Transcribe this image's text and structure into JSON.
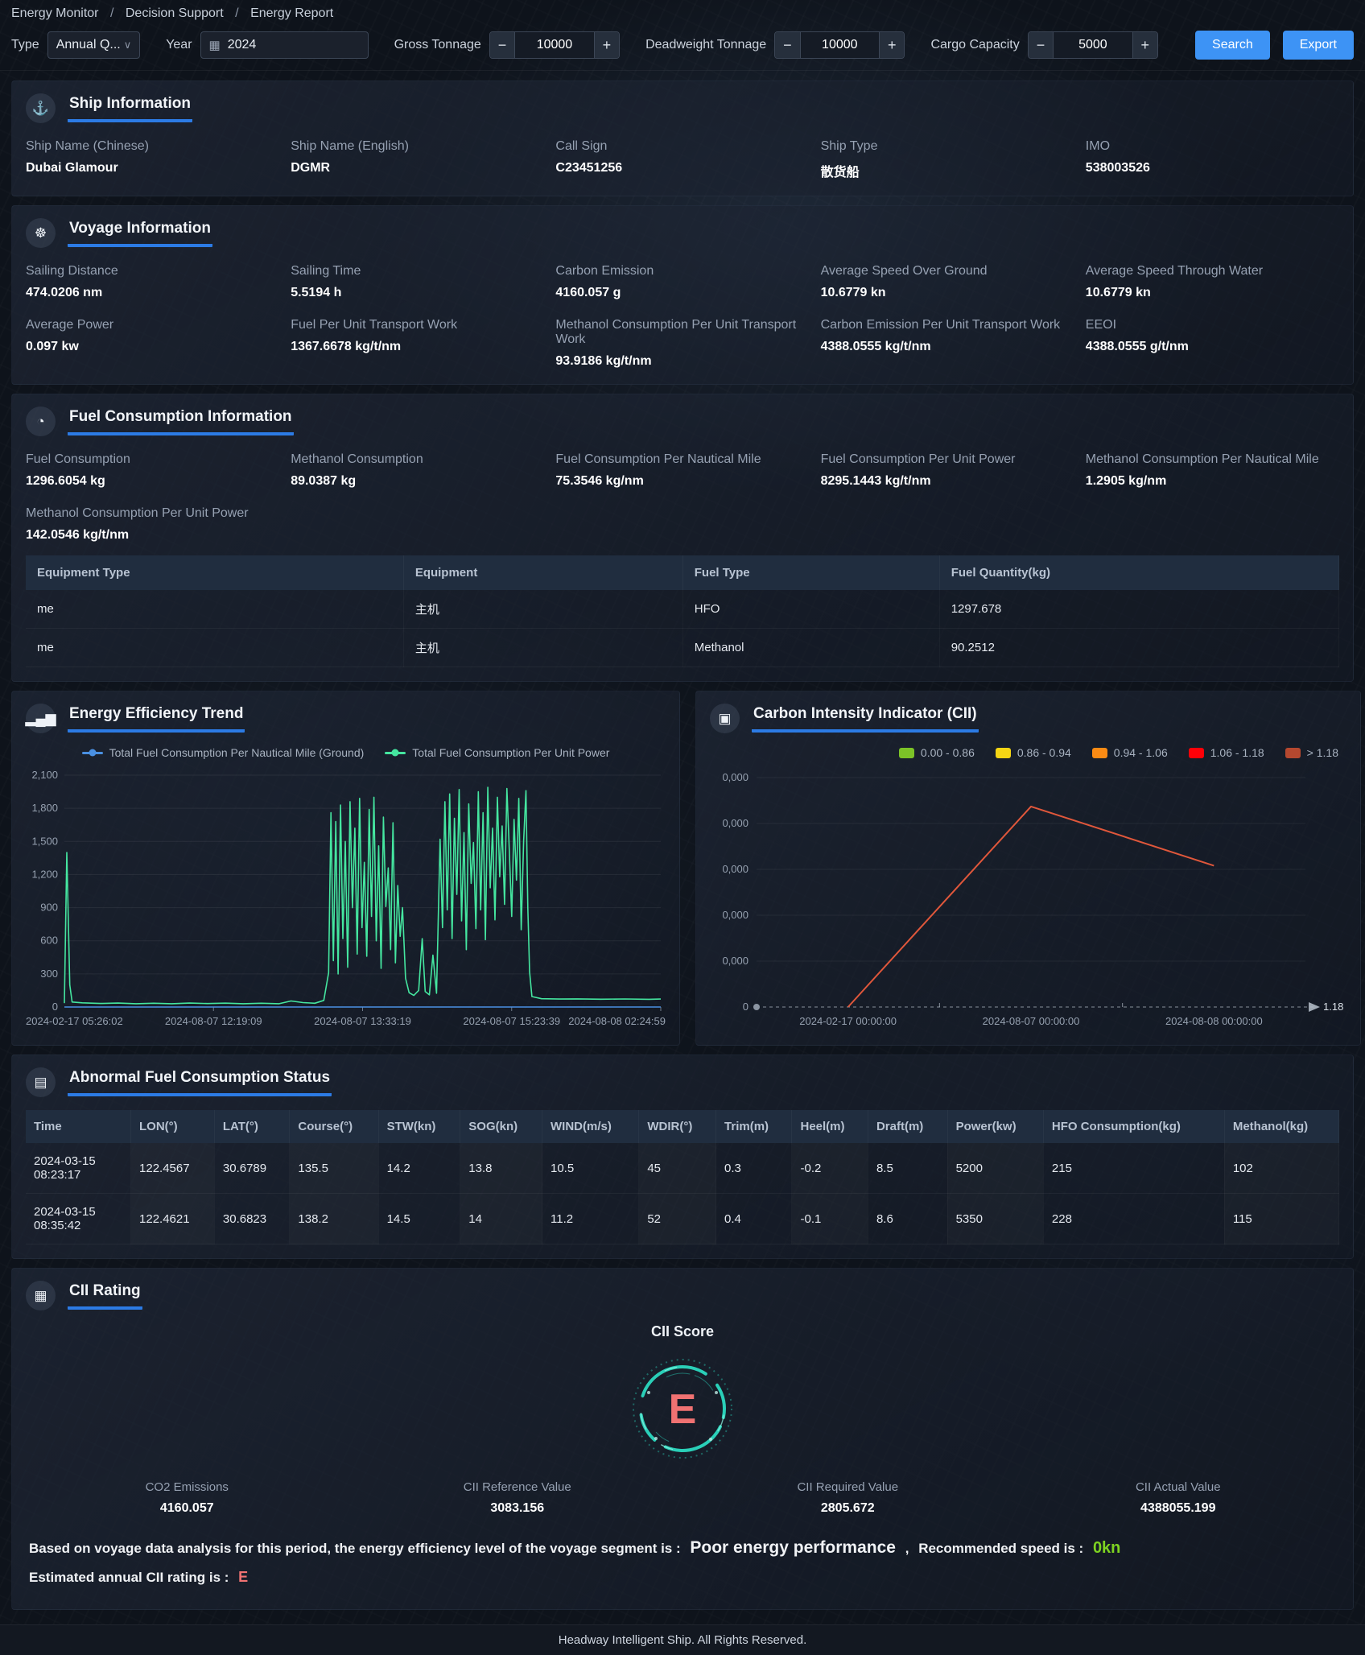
{
  "breadcrumb": {
    "separator": "/",
    "items": [
      "Energy Monitor",
      "Decision Support",
      "Energy Report"
    ]
  },
  "icons": {
    "chevron_down": "∨",
    "calendar": "▦",
    "minus": "−",
    "plus": "+",
    "ship": "⚓",
    "voyage": "☸",
    "fuel": "◔",
    "energy": "▂▄▆",
    "monitor": "▣",
    "document": "▤",
    "report": "▦"
  },
  "filters": {
    "type_label": "Type",
    "type_value": "Annual Q...",
    "year_label": "Year",
    "year_value": "2024",
    "gross_tonnage_label": "Gross Tonnage",
    "gross_tonnage_value": "10000",
    "deadweight_label": "Deadweight Tonnage",
    "deadweight_value": "10000",
    "cargo_label": "Cargo Capacity",
    "cargo_value": "5000",
    "search_label": "Search",
    "export_label": "Export"
  },
  "ship_info": {
    "title": "Ship Information",
    "fields": [
      {
        "label": "Ship Name (Chinese)",
        "value": "Dubai Glamour"
      },
      {
        "label": "Ship Name (English)",
        "value": "DGMR"
      },
      {
        "label": "Call Sign",
        "value": "C23451256"
      },
      {
        "label": "Ship Type",
        "value": "散货船"
      },
      {
        "label": "IMO",
        "value": "538003526"
      }
    ]
  },
  "voyage_info": {
    "title": "Voyage Information",
    "fields": [
      {
        "label": "Sailing Distance",
        "value": "474.0206 nm"
      },
      {
        "label": "Sailing Time",
        "value": "5.5194 h"
      },
      {
        "label": "Carbon Emission",
        "value": "4160.057 g"
      },
      {
        "label": "Average Speed Over Ground",
        "value": "10.6779 kn"
      },
      {
        "label": "Average Speed Through Water",
        "value": "10.6779 kn"
      },
      {
        "label": "Average Power",
        "value": "0.097 kw"
      },
      {
        "label": "Fuel Per Unit Transport Work",
        "value": "1367.6678 kg/t/nm"
      },
      {
        "label": "Methanol Consumption Per Unit Transport Work",
        "value": "93.9186 kg/t/nm"
      },
      {
        "label": "Carbon Emission Per Unit Transport Work",
        "value": "4388.0555 kg/t/nm"
      },
      {
        "label": "EEOI",
        "value": "4388.0555 g/t/nm"
      }
    ]
  },
  "fuel_info": {
    "title": "Fuel Consumption Information",
    "fields": [
      {
        "label": "Fuel Consumption",
        "value": "1296.6054 kg"
      },
      {
        "label": "Methanol Consumption",
        "value": "89.0387 kg"
      },
      {
        "label": "Fuel Consumption Per Nautical Mile",
        "value": "75.3546 kg/nm"
      },
      {
        "label": "Fuel Consumption Per Unit Power",
        "value": "8295.1443 kg/t/nm"
      },
      {
        "label": "Methanol Consumption Per Nautical Mile",
        "value": "1.2905 kg/nm"
      },
      {
        "label": "Methanol Consumption Per Unit Power",
        "value": "142.0546 kg/t/nm"
      }
    ],
    "table": {
      "headers": [
        "Equipment Type",
        "Equipment",
        "Fuel Type",
        "Fuel Quantity(kg)"
      ],
      "rows": [
        [
          "me",
          "主机",
          "HFO",
          "1297.678"
        ],
        [
          "me",
          "主机",
          "Methanol",
          "90.2512"
        ]
      ]
    }
  },
  "chart_data": [
    {
      "type": "line",
      "title": "Energy Efficiency Trend",
      "legend_position": "top",
      "grid": true,
      "ylim": [
        0,
        2100
      ],
      "ytick_step": 300,
      "xtick_labels": [
        "2024-02-17 05:26:02",
        "2024-08-07 12:19:09",
        "2024-08-07 13:33:19",
        "2024-08-07 15:23:39",
        "2024-08-08 02:24:59"
      ],
      "series": [
        {
          "name": "Total Fuel Consumption Per Nautical Mile (Ground)",
          "color": "#4a90e2",
          "points": [
            [
              0,
              0
            ],
            [
              100,
              0
            ]
          ]
        },
        {
          "name": "Total Fuel Consumption Per Unit Power",
          "color": "#45e6a0",
          "points": [
            [
              0,
              35
            ],
            [
              0.4,
              1400
            ],
            [
              0.9,
              200
            ],
            [
              1.3,
              45
            ],
            [
              3,
              38
            ],
            [
              6,
              32
            ],
            [
              9,
              36
            ],
            [
              12,
              30
            ],
            [
              15,
              34
            ],
            [
              18,
              30
            ],
            [
              21,
              36
            ],
            [
              24,
              31
            ],
            [
              27,
              35
            ],
            [
              30,
              30
            ],
            [
              33,
              34
            ],
            [
              36,
              30
            ],
            [
              38,
              55
            ],
            [
              40,
              40
            ],
            [
              42,
              34
            ],
            [
              43.5,
              60
            ],
            [
              44.3,
              310
            ],
            [
              44.7,
              1760
            ],
            [
              45.1,
              420
            ],
            [
              45.5,
              1680
            ],
            [
              45.9,
              300
            ],
            [
              46.3,
              1830
            ],
            [
              46.7,
              620
            ],
            [
              47.1,
              1500
            ],
            [
              47.5,
              360
            ],
            [
              47.9,
              1860
            ],
            [
              48.3,
              900
            ],
            [
              48.7,
              1620
            ],
            [
              49.1,
              480
            ],
            [
              49.5,
              1890
            ],
            [
              49.9,
              720
            ],
            [
              50.3,
              1310
            ],
            [
              50.7,
              460
            ],
            [
              51.1,
              1790
            ],
            [
              51.5,
              820
            ],
            [
              51.9,
              1900
            ],
            [
              52.3,
              600
            ],
            [
              52.7,
              1460
            ],
            [
              53.1,
              350
            ],
            [
              53.5,
              1720
            ],
            [
              53.9,
              910
            ],
            [
              54.3,
              1260
            ],
            [
              54.7,
              520
            ],
            [
              55.1,
              1670
            ],
            [
              55.5,
              400
            ],
            [
              55.9,
              1100
            ],
            [
              56.3,
              640
            ],
            [
              56.7,
              900
            ],
            [
              57.2,
              260
            ],
            [
              57.8,
              130
            ],
            [
              58.6,
              105
            ],
            [
              59.4,
              150
            ],
            [
              60,
              620
            ],
            [
              60.5,
              140
            ],
            [
              61.2,
              110
            ],
            [
              61.8,
              470
            ],
            [
              62.4,
              125
            ],
            [
              63,
              1520
            ],
            [
              63.4,
              720
            ],
            [
              63.8,
              1860
            ],
            [
              64.2,
              880
            ],
            [
              64.6,
              1930
            ],
            [
              65,
              620
            ],
            [
              65.4,
              1710
            ],
            [
              65.8,
              1020
            ],
            [
              66.2,
              1970
            ],
            [
              66.6,
              780
            ],
            [
              67,
              1580
            ],
            [
              67.4,
              520
            ],
            [
              67.8,
              1840
            ],
            [
              68.2,
              1120
            ],
            [
              68.6,
              1490
            ],
            [
              69,
              710
            ],
            [
              69.4,
              1950
            ],
            [
              69.8,
              880
            ],
            [
              70.2,
              1760
            ],
            [
              70.6,
              610
            ],
            [
              71,
              1990
            ],
            [
              71.4,
              1080
            ],
            [
              71.8,
              1620
            ],
            [
              72.2,
              790
            ],
            [
              72.6,
              1900
            ],
            [
              73,
              1180
            ],
            [
              73.4,
              1640
            ],
            [
              73.8,
              930
            ],
            [
              74.2,
              1980
            ],
            [
              74.6,
              1420
            ],
            [
              75,
              820
            ],
            [
              75.4,
              1700
            ],
            [
              75.8,
              1150
            ],
            [
              76.2,
              1890
            ],
            [
              76.6,
              700
            ],
            [
              77,
              1500
            ],
            [
              77.4,
              1960
            ],
            [
              77.7,
              900
            ],
            [
              78,
              320
            ],
            [
              78.4,
              95
            ],
            [
              80,
              75
            ],
            [
              83,
              72
            ],
            [
              86,
              74
            ],
            [
              90,
              71
            ],
            [
              94,
              73
            ],
            [
              98,
              70
            ],
            [
              100,
              72
            ]
          ]
        }
      ]
    },
    {
      "type": "line",
      "title": "Carbon Intensity Indicator (CII)",
      "legend_position": "top-right",
      "legend": [
        {
          "label": "0.00 - 0.86",
          "color": "#7cc327"
        },
        {
          "label": "0.86 - 0.94",
          "color": "#f5d514"
        },
        {
          "label": "0.94 - 1.06",
          "color": "#fb8b14"
        },
        {
          "label": "1.06 - 1.18",
          "color": "#ff0008"
        },
        {
          "label": "> 1.18",
          "color": "#b5482f"
        }
      ],
      "line_color": "#e0573b",
      "x": [
        "2024-02-17 00:00:00",
        "2024-08-07 00:00:00",
        "2024-08-08 00:00:00"
      ],
      "values": [
        0,
        4.37,
        3.08
      ],
      "ylim": [
        0,
        5
      ],
      "ytick_labels": [
        "0",
        "0,000",
        "0,000",
        "0,000",
        "0,000",
        "0,000"
      ],
      "axis_end_label": "1.18"
    }
  ],
  "abnormal": {
    "title": "Abnormal Fuel Consumption Status",
    "table": {
      "headers": [
        "Time",
        "LON(°)",
        "LAT(°)",
        "Course(°)",
        "STW(kn)",
        "SOG(kn)",
        "WIND(m/s)",
        "WDIR(°)",
        "Trim(m)",
        "Heel(m)",
        "Draft(m)",
        "Power(kw)",
        "HFO Consumption(kg)",
        "Methanol(kg)"
      ],
      "rows": [
        [
          "2024-03-15 08:23:17",
          "122.4567",
          "30.6789",
          "135.5",
          "14.2",
          "13.8",
          "10.5",
          "45",
          "0.3",
          "-0.2",
          "8.5",
          "5200",
          "215",
          "102"
        ],
        [
          "2024-03-15 08:35:42",
          "122.4621",
          "30.6823",
          "138.2",
          "14.5",
          "14",
          "11.2",
          "52",
          "0.4",
          "-0.1",
          "8.6",
          "5350",
          "228",
          "115"
        ]
      ]
    }
  },
  "cii_rating": {
    "title": "CII Rating",
    "score_label": "CII Score",
    "score": "E",
    "metrics": [
      {
        "label": "CO2 Emissions",
        "value": "4160.057"
      },
      {
        "label": "CII Reference Value",
        "value": "3083.156"
      },
      {
        "label": "CII Required Value",
        "value": "2805.672"
      },
      {
        "label": "CII Actual Value",
        "value": "4388055.199"
      }
    ],
    "summary_prefix": "Based on voyage data analysis for this period, the energy efficiency level of the voyage segment is :",
    "summary_value": "Poor energy performance",
    "summary_comma": ",",
    "speed_label": "Recommended speed is :",
    "speed_value": "0kn",
    "rating_label": "Estimated annual CII rating is :",
    "rating_value": "E"
  },
  "footer": {
    "text": "Headway Intelligent Ship. All Rights Reserved."
  },
  "colors": {
    "accent_underline": "#2c7be5",
    "button_blue": "#3d93f5",
    "trend_green": "#45e6a0",
    "trend_blue": "#4a90e2",
    "cii_line": "#e0573b",
    "gauge_teal": "#2bd9c0",
    "rating_red": "#f07272",
    "speed_green": "#7ed321"
  }
}
